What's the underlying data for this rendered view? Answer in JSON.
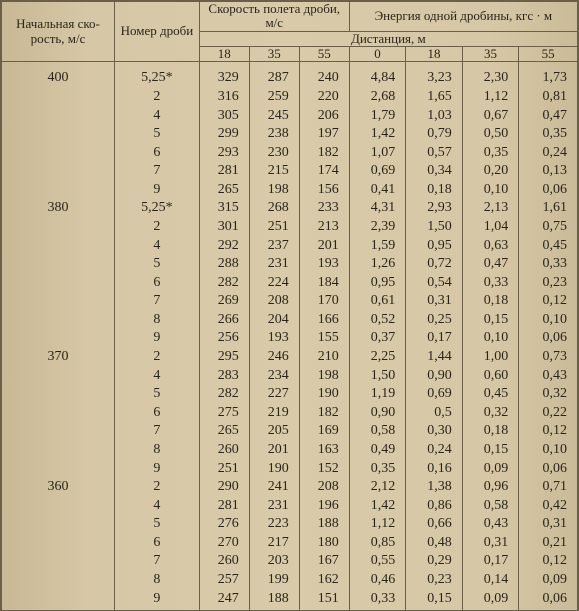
{
  "headers": {
    "col0": "Начальная ско­рость, м/с",
    "col1": "Номер дроби",
    "group2": "Скорость полета дроби, м/с",
    "group3": "Энергия одной дробины, кгс · м",
    "distance": "Дистанция, м",
    "d18": "18",
    "d35": "35",
    "d55": "55",
    "e0": "0",
    "e18": "18",
    "e35": "35",
    "e55": "55"
  },
  "rows": [
    {
      "v": "400",
      "s": "5,25*",
      "a": "329",
      "b": "287",
      "c": "240",
      "e0": "4,84",
      "e1": "3,23",
      "e2": "2,30",
      "e3": "1,73"
    },
    {
      "v": "",
      "s": "2",
      "a": "316",
      "b": "259",
      "c": "220",
      "e0": "2,68",
      "e1": "1,65",
      "e2": "1,12",
      "e3": "0,81"
    },
    {
      "v": "",
      "s": "4",
      "a": "305",
      "b": "245",
      "c": "206",
      "e0": "1,79",
      "e1": "1,03",
      "e2": "0,67",
      "e3": "0,47"
    },
    {
      "v": "",
      "s": "5",
      "a": "299",
      "b": "238",
      "c": "197",
      "e0": "1,42",
      "e1": "0,79",
      "e2": "0,50",
      "e3": "0,35"
    },
    {
      "v": "",
      "s": "6",
      "a": "293",
      "b": "230",
      "c": "182",
      "e0": "1,07",
      "e1": "0,57",
      "e2": "0,35",
      "e3": "0,24"
    },
    {
      "v": "",
      "s": "7",
      "a": "281",
      "b": "215",
      "c": "174",
      "e0": "0,69",
      "e1": "0,34",
      "e2": "0,20",
      "e3": "0,13"
    },
    {
      "v": "",
      "s": "9",
      "a": "265",
      "b": "198",
      "c": "156",
      "e0": "0,41",
      "e1": "0,18",
      "e2": "0,10",
      "e3": "0,06"
    },
    {
      "v": "380",
      "s": "5,25*",
      "a": "315",
      "b": "268",
      "c": "233",
      "e0": "4,31",
      "e1": "2,93",
      "e2": "2,13",
      "e3": "1,61"
    },
    {
      "v": "",
      "s": "2",
      "a": "301",
      "b": "251",
      "c": "213",
      "e0": "2,39",
      "e1": "1,50",
      "e2": "1,04",
      "e3": "0,75"
    },
    {
      "v": "",
      "s": "4",
      "a": "292",
      "b": "237",
      "c": "201",
      "e0": "1,59",
      "e1": "0,95",
      "e2": "0,63",
      "e3": "0,45"
    },
    {
      "v": "",
      "s": "5",
      "a": "288",
      "b": "231",
      "c": "193",
      "e0": "1,26",
      "e1": "0,72",
      "e2": "0,47",
      "e3": "0,33"
    },
    {
      "v": "",
      "s": "6",
      "a": "282",
      "b": "224",
      "c": "184",
      "e0": "0,95",
      "e1": "0,54",
      "e2": "0,33",
      "e3": "0,23"
    },
    {
      "v": "",
      "s": "7",
      "a": "269",
      "b": "208",
      "c": "170",
      "e0": "0,61",
      "e1": "0,31",
      "e2": "0,18",
      "e3": "0,12"
    },
    {
      "v": "",
      "s": "8",
      "a": "266",
      "b": "204",
      "c": "166",
      "e0": "0,52",
      "e1": "0,25",
      "e2": "0,15",
      "e3": "0,10"
    },
    {
      "v": "",
      "s": "9",
      "a": "256",
      "b": "193",
      "c": "155",
      "e0": "0,37",
      "e1": "0,17",
      "e2": "0,10",
      "e3": "0,06"
    },
    {
      "v": "370",
      "s": "2",
      "a": "295",
      "b": "246",
      "c": "210",
      "e0": "2,25",
      "e1": "1,44",
      "e2": "1,00",
      "e3": "0,73"
    },
    {
      "v": "",
      "s": "4",
      "a": "283",
      "b": "234",
      "c": "198",
      "e0": "1,50",
      "e1": "0,90",
      "e2": "0,60",
      "e3": "0,43"
    },
    {
      "v": "",
      "s": "5",
      "a": "282",
      "b": "227",
      "c": "190",
      "e0": "1,19",
      "e1": "0,69",
      "e2": "0,45",
      "e3": "0,32"
    },
    {
      "v": "",
      "s": "6",
      "a": "275",
      "b": "219",
      "c": "182",
      "e0": "0,90",
      "e1": "0,5",
      "e2": "0,32",
      "e3": "0,22"
    },
    {
      "v": "",
      "s": "7",
      "a": "265",
      "b": "205",
      "c": "169",
      "e0": "0,58",
      "e1": "0,30",
      "e2": "0,18",
      "e3": "0,12"
    },
    {
      "v": "",
      "s": "8",
      "a": "260",
      "b": "201",
      "c": "163",
      "e0": "0,49",
      "e1": "0,24",
      "e2": "0,15",
      "e3": "0,10"
    },
    {
      "v": "",
      "s": "9",
      "a": "251",
      "b": "190",
      "c": "152",
      "e0": "0,35",
      "e1": "0,16",
      "e2": "0,09",
      "e3": "0,06"
    },
    {
      "v": "360",
      "s": "2",
      "a": "290",
      "b": "241",
      "c": "208",
      "e0": "2,12",
      "e1": "1,38",
      "e2": "0,96",
      "e3": "0,71"
    },
    {
      "v": "",
      "s": "4",
      "a": "281",
      "b": "231",
      "c": "196",
      "e0": "1,42",
      "e1": "0,86",
      "e2": "0,58",
      "e3": "0,42"
    },
    {
      "v": "",
      "s": "5",
      "a": "276",
      "b": "223",
      "c": "188",
      "e0": "1,12",
      "e1": "0,66",
      "e2": "0,43",
      "e3": "0,31"
    },
    {
      "v": "",
      "s": "6",
      "a": "270",
      "b": "217",
      "c": "180",
      "e0": "0,85",
      "e1": "0,48",
      "e2": "0,31",
      "e3": "0,21"
    },
    {
      "v": "",
      "s": "7",
      "a": "260",
      "b": "203",
      "c": "167",
      "e0": "0,55",
      "e1": "0,29",
      "e2": "0,17",
      "e3": "0,12"
    },
    {
      "v": "",
      "s": "8",
      "a": "257",
      "b": "199",
      "c": "162",
      "e0": "0,46",
      "e1": "0,23",
      "e2": "0,14",
      "e3": "0,09"
    },
    {
      "v": "",
      "s": "9",
      "a": "247",
      "b": "188",
      "c": "151",
      "e0": "0,33",
      "e1": "0,15",
      "e2": "0,09",
      "e3": "0,06"
    }
  ]
}
